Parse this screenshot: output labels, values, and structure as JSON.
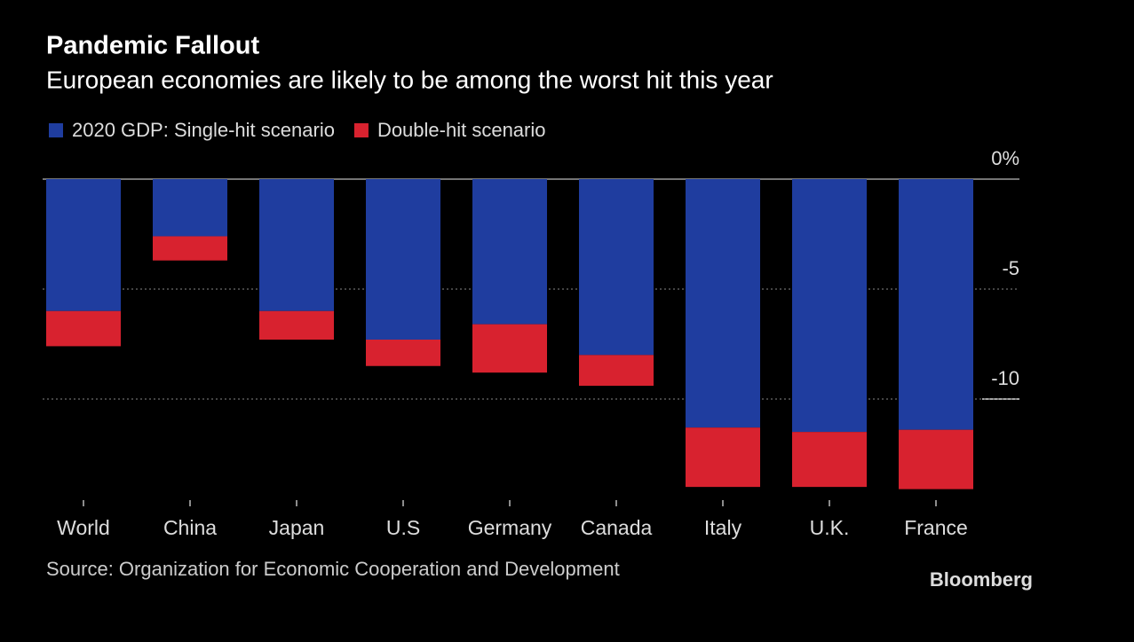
{
  "chart_data": {
    "type": "stacked_bar",
    "title": "Pandemic Fallout",
    "subtitle": "European economies are likely to be among the worst hit this year",
    "categories": [
      "World",
      "China",
      "Japan",
      "U.S",
      "Germany",
      "Canada",
      "Italy",
      "U.K.",
      "France"
    ],
    "series": [
      {
        "name": "2020 GDP: Single-hit scenario",
        "color": "#1f3d9f",
        "values": [
          -6.0,
          -2.6,
          -6.0,
          -7.3,
          -6.6,
          -8.0,
          -11.3,
          -11.5,
          -11.4
        ]
      },
      {
        "name": "Double-hit scenario",
        "color": "#d8222f",
        "values": [
          -1.6,
          -1.1,
          -1.3,
          -1.2,
          -2.2,
          -1.4,
          -2.7,
          -2.5,
          -2.7
        ]
      }
    ],
    "ylim": [
      -14.6,
      0
    ],
    "yticks": [
      {
        "value": 0,
        "label": "0%"
      },
      -5,
      -10
    ],
    "grid": true,
    "source": "Source: Organization for Economic Cooperation and Development",
    "brand": "Bloomberg"
  }
}
